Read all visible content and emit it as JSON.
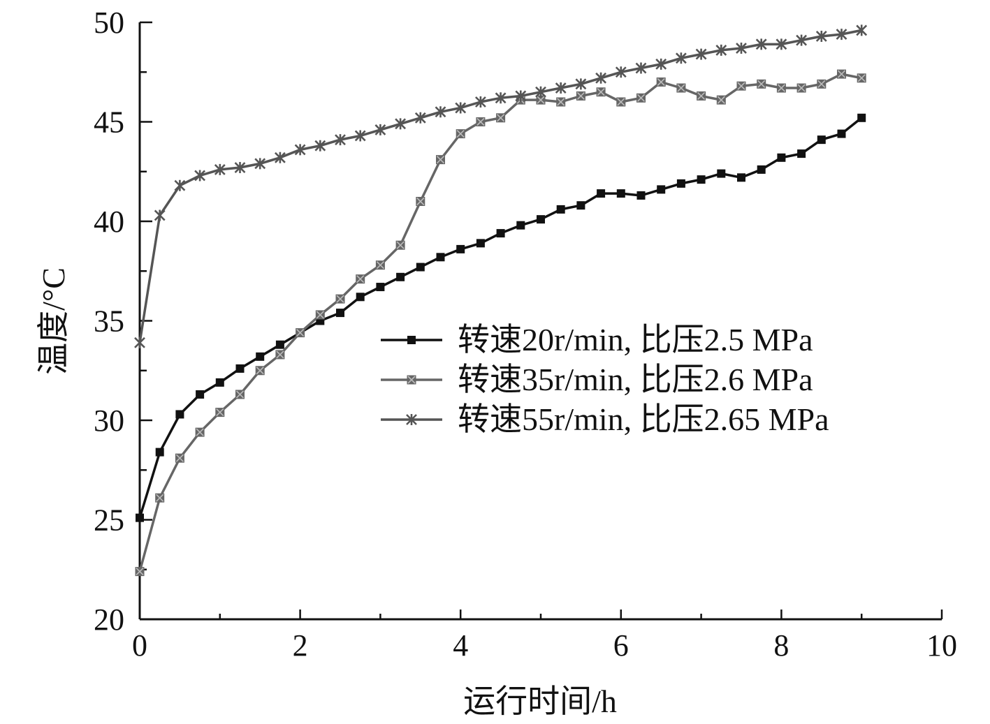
{
  "chart_data": {
    "type": "line",
    "xlabel": "运行时间/h",
    "ylabel": "温度/°C",
    "xlim": [
      0,
      10
    ],
    "ylim": [
      20,
      50
    ],
    "xticks": [
      0,
      2,
      4,
      6,
      8,
      10
    ],
    "yticks": [
      20,
      25,
      30,
      35,
      40,
      45,
      50
    ],
    "x_minor_step": 1,
    "y_minor_step": 2.5,
    "grid": false,
    "legend_position": "center-right",
    "x": [
      0,
      0.25,
      0.5,
      0.75,
      1,
      1.25,
      1.5,
      1.75,
      2,
      2.25,
      2.5,
      2.75,
      3,
      3.25,
      3.5,
      3.75,
      4,
      4.25,
      4.5,
      4.75,
      5,
      5.25,
      5.5,
      5.75,
      6,
      6.25,
      6.5,
      6.75,
      7,
      7.25,
      7.5,
      7.75,
      8,
      8.25,
      8.5,
      8.75,
      9
    ],
    "series": [
      {
        "name": "转速20r/min, 比压2.5 MPa",
        "color": "#111111",
        "marker": "square",
        "values": [
          25.1,
          28.4,
          30.3,
          31.3,
          31.9,
          32.6,
          33.2,
          33.8,
          34.4,
          35.0,
          35.4,
          36.2,
          36.7,
          37.2,
          37.7,
          38.2,
          38.6,
          38.9,
          39.4,
          39.8,
          40.1,
          40.6,
          40.8,
          41.4,
          41.4,
          41.3,
          41.6,
          41.9,
          42.1,
          42.4,
          42.2,
          42.6,
          43.2,
          43.4,
          44.1,
          44.4,
          45.2
        ]
      },
      {
        "name": "转速35r/min, 比压2.6 MPa",
        "color": "#666666",
        "marker": "square-x",
        "values": [
          22.4,
          26.1,
          28.1,
          29.4,
          30.4,
          31.3,
          32.5,
          33.3,
          34.4,
          35.3,
          36.1,
          37.1,
          37.8,
          38.8,
          41.0,
          43.1,
          44.4,
          45.0,
          45.2,
          46.1,
          46.1,
          46.0,
          46.3,
          46.5,
          46.0,
          46.2,
          47.0,
          46.7,
          46.3,
          46.1,
          46.8,
          46.9,
          46.7,
          46.7,
          46.9,
          47.4,
          47.2
        ]
      },
      {
        "name": "转速55r/min, 比压2.65 MPa",
        "color": "#555555",
        "marker": "asterisk",
        "values": [
          33.9,
          40.3,
          41.8,
          42.3,
          42.6,
          42.7,
          42.9,
          43.2,
          43.6,
          43.8,
          44.1,
          44.3,
          44.6,
          44.9,
          45.2,
          45.5,
          45.7,
          46.0,
          46.2,
          46.3,
          46.5,
          46.7,
          46.9,
          47.2,
          47.5,
          47.7,
          47.9,
          48.2,
          48.4,
          48.6,
          48.7,
          48.9,
          48.9,
          49.1,
          49.3,
          49.4,
          49.6
        ]
      }
    ]
  }
}
